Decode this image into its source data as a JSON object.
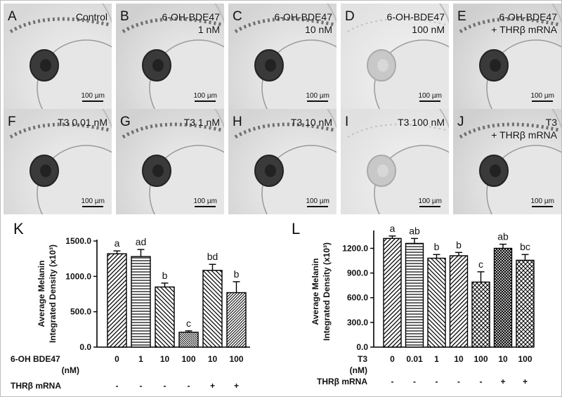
{
  "figure": {
    "panels": [
      {
        "label": "A",
        "text_lines": [
          "Control"
        ],
        "scale": "100 µm"
      },
      {
        "label": "B",
        "text_lines": [
          "6-OH-BDE47",
          "1 nM"
        ],
        "scale": "100 µm"
      },
      {
        "label": "C",
        "text_lines": [
          "6-OH-BDE47",
          "10 nM"
        ],
        "scale": "100 µm"
      },
      {
        "label": "D",
        "text_lines": [
          "6-OH-BDE47",
          "100 nM"
        ],
        "scale": "100 µm"
      },
      {
        "label": "E",
        "text_lines": [
          "6-OH-BDE47",
          "+ THRβ mRNA"
        ],
        "scale": "100 µm"
      },
      {
        "label": "F",
        "text_lines": [
          "T3 0.01 nM"
        ],
        "scale": "100 µm"
      },
      {
        "label": "G",
        "text_lines": [
          "T3 1 nM"
        ],
        "scale": "100 µm"
      },
      {
        "label": "H",
        "text_lines": [
          "T3 10 nM"
        ],
        "scale": "100 µm"
      },
      {
        "label": "I",
        "text_lines": [
          "T3 100 nM"
        ],
        "scale": "100 µm"
      },
      {
        "label": "J",
        "text_lines": [
          "T3",
          "+ THRβ mRNA"
        ],
        "scale": "100 µm"
      }
    ]
  },
  "chart_data": [
    {
      "type": "bar",
      "panel_label": "K",
      "ylabel_lines": [
        "Average Melanin",
        "Integrated Density (x10³)"
      ],
      "ylim": [
        0,
        1500
      ],
      "yticks": [
        0,
        500,
        1000,
        1500
      ],
      "ytick_labels": [
        "0.0",
        "500.0",
        "1000.0",
        "1500.0"
      ],
      "row1_header": "6-OH BDE47",
      "row1_unit": "(nM)",
      "row2_header": "THRβ mRNA",
      "categories": [
        "0",
        "1",
        "10",
        "100",
        "10",
        "100"
      ],
      "mrna": [
        "-",
        "-",
        "-",
        "-",
        "+",
        "+"
      ],
      "values": [
        1320,
        1280,
        850,
        210,
        1085,
        770
      ],
      "errors": [
        40,
        100,
        55,
        20,
        85,
        155
      ],
      "letters": [
        "a",
        "ad",
        "b",
        "c",
        "bd",
        "b"
      ],
      "patterns": [
        "bdiag",
        "hlines",
        "fdiag",
        "fdiag-dense",
        "fdiag",
        "bdiag-dense"
      ]
    },
    {
      "type": "bar",
      "panel_label": "L",
      "ylabel_lines": [
        "Average Melanin",
        "Integrated Density (x10³)"
      ],
      "ylim": [
        0,
        1400
      ],
      "yticks": [
        0,
        300,
        600,
        900,
        1200
      ],
      "ytick_labels": [
        "0.0",
        "300.0",
        "600.0",
        "900.0",
        "1200.0"
      ],
      "row1_header": "T3",
      "row1_unit": "(nM)",
      "row2_header": "THRβ mRNA",
      "categories": [
        "0",
        "0.01",
        "1",
        "10",
        "100",
        "10",
        "100"
      ],
      "mrna": [
        "-",
        "-",
        "-",
        "-",
        "-",
        "+",
        "+"
      ],
      "values": [
        1320,
        1260,
        1080,
        1110,
        790,
        1200,
        1055
      ],
      "errors": [
        30,
        60,
        45,
        40,
        125,
        50,
        70
      ],
      "letters": [
        "a",
        "ab",
        "b",
        "b",
        "c",
        "ab",
        "bc"
      ],
      "patterns": [
        "bdiag",
        "hlines",
        "fdiag",
        "bdiag",
        "cross",
        "cross-dense",
        "cross"
      ]
    }
  ]
}
